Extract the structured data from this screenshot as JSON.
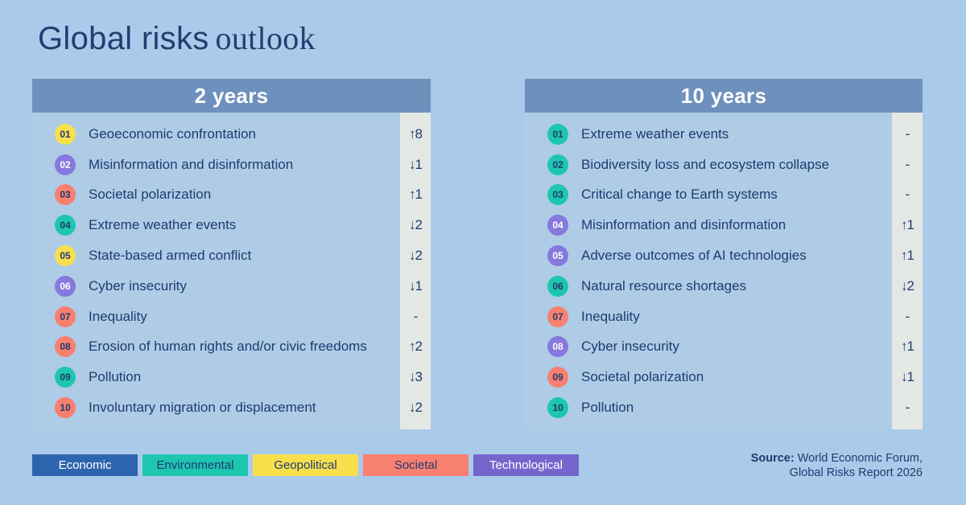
{
  "page": {
    "title": {
      "sans": "Global risks",
      "serif": "outlook",
      "color": "#233c72"
    },
    "background": "#a9cbe9"
  },
  "colors": {
    "header_bg": "#6e90bd",
    "header_text": "#ffffff",
    "panel_bg": "#aecce6",
    "trend_strip_bg": "#e4e8e5",
    "text": "#203a70"
  },
  "categories": {
    "economic": {
      "label": "Economic",
      "color": "#2d64ae",
      "text_color": "#ffffff"
    },
    "environmental": {
      "label": "Environmental",
      "color": "#1ec6b0",
      "text_color": "#203a70"
    },
    "geopolitical": {
      "label": "Geopolitical",
      "color": "#f8e04d",
      "text_color": "#203a70"
    },
    "societal": {
      "label": "Societal",
      "color": "#f88070",
      "text_color": "#203a70"
    },
    "technological": {
      "label": "Technological",
      "color": "#8678dd",
      "legend_color": "#7566cd",
      "text_color": "#ffffff"
    }
  },
  "legend_order": [
    "economic",
    "environmental",
    "geopolitical",
    "societal",
    "technological"
  ],
  "panels": [
    {
      "title": "2 years",
      "rows": [
        {
          "rank": "01",
          "label": "Geoeconomic confrontation",
          "category": "geopolitical",
          "trend": "↑8"
        },
        {
          "rank": "02",
          "label": "Misinformation and disinformation",
          "category": "technological",
          "trend": "↓1"
        },
        {
          "rank": "03",
          "label": "Societal polarization",
          "category": "societal",
          "trend": "↑1"
        },
        {
          "rank": "04",
          "label": "Extreme weather events",
          "category": "environmental",
          "trend": "↓2"
        },
        {
          "rank": "05",
          "label": "State-based armed conflict",
          "category": "geopolitical",
          "trend": "↓2"
        },
        {
          "rank": "06",
          "label": "Cyber insecurity",
          "category": "technological",
          "trend": "↓1"
        },
        {
          "rank": "07",
          "label": "Inequality",
          "category": "societal",
          "trend": "-"
        },
        {
          "rank": "08",
          "label": "Erosion of human rights and/or civic freedoms",
          "category": "societal",
          "trend": "↑2"
        },
        {
          "rank": "09",
          "label": "Pollution",
          "category": "environmental",
          "trend": "↓3"
        },
        {
          "rank": "10",
          "label": "Involuntary migration or displacement",
          "category": "societal",
          "trend": "↓2"
        }
      ]
    },
    {
      "title": "10 years",
      "rows": [
        {
          "rank": "01",
          "label": "Extreme weather events",
          "category": "environmental",
          "trend": "-"
        },
        {
          "rank": "02",
          "label": "Biodiversity loss and ecosystem collapse",
          "category": "environmental",
          "trend": "-"
        },
        {
          "rank": "03",
          "label": "Critical change to Earth systems",
          "category": "environmental",
          "trend": "-"
        },
        {
          "rank": "04",
          "label": "Misinformation and disinformation",
          "category": "technological",
          "trend": "↑1"
        },
        {
          "rank": "05",
          "label": "Adverse outcomes of AI technologies",
          "category": "technological",
          "trend": "↑1"
        },
        {
          "rank": "06",
          "label": "Natural resource shortages",
          "category": "environmental",
          "trend": "↓2"
        },
        {
          "rank": "07",
          "label": "Inequality",
          "category": "societal",
          "trend": "-"
        },
        {
          "rank": "08",
          "label": "Cyber insecurity",
          "category": "technological",
          "trend": "↑1"
        },
        {
          "rank": "09",
          "label": "Societal polarization",
          "category": "societal",
          "trend": "↓1"
        },
        {
          "rank": "10",
          "label": "Pollution",
          "category": "environmental",
          "trend": "-"
        }
      ]
    }
  ],
  "source": {
    "label": "Source:",
    "line1": " World Economic Forum,",
    "line2": "Global Risks Report 2026"
  },
  "chart_data": [
    {
      "type": "table",
      "title": "2 years",
      "columns": [
        "rank",
        "risk",
        "category",
        "rank_change"
      ],
      "rows": [
        [
          1,
          "Geoeconomic confrontation",
          "Geopolitical",
          8
        ],
        [
          2,
          "Misinformation and disinformation",
          "Technological",
          -1
        ],
        [
          3,
          "Societal polarization",
          "Societal",
          1
        ],
        [
          4,
          "Extreme weather events",
          "Environmental",
          -2
        ],
        [
          5,
          "State-based armed conflict",
          "Geopolitical",
          -2
        ],
        [
          6,
          "Cyber insecurity",
          "Technological",
          -1
        ],
        [
          7,
          "Inequality",
          "Societal",
          null
        ],
        [
          8,
          "Erosion of human rights and/or civic freedoms",
          "Societal",
          2
        ],
        [
          9,
          "Pollution",
          "Environmental",
          -3
        ],
        [
          10,
          "Involuntary migration or displacement",
          "Societal",
          -2
        ]
      ]
    },
    {
      "type": "table",
      "title": "10 years",
      "columns": [
        "rank",
        "risk",
        "category",
        "rank_change"
      ],
      "rows": [
        [
          1,
          "Extreme weather events",
          "Environmental",
          null
        ],
        [
          2,
          "Biodiversity loss and ecosystem collapse",
          "Environmental",
          null
        ],
        [
          3,
          "Critical change to Earth systems",
          "Environmental",
          null
        ],
        [
          4,
          "Misinformation and disinformation",
          "Technological",
          1
        ],
        [
          5,
          "Adverse outcomes of AI technologies",
          "Technological",
          1
        ],
        [
          6,
          "Natural resource shortages",
          "Environmental",
          -2
        ],
        [
          7,
          "Inequality",
          "Societal",
          null
        ],
        [
          8,
          "Cyber insecurity",
          "Technological",
          1
        ],
        [
          9,
          "Societal polarization",
          "Societal",
          -1
        ],
        [
          10,
          "Pollution",
          "Environmental",
          null
        ]
      ]
    }
  ]
}
